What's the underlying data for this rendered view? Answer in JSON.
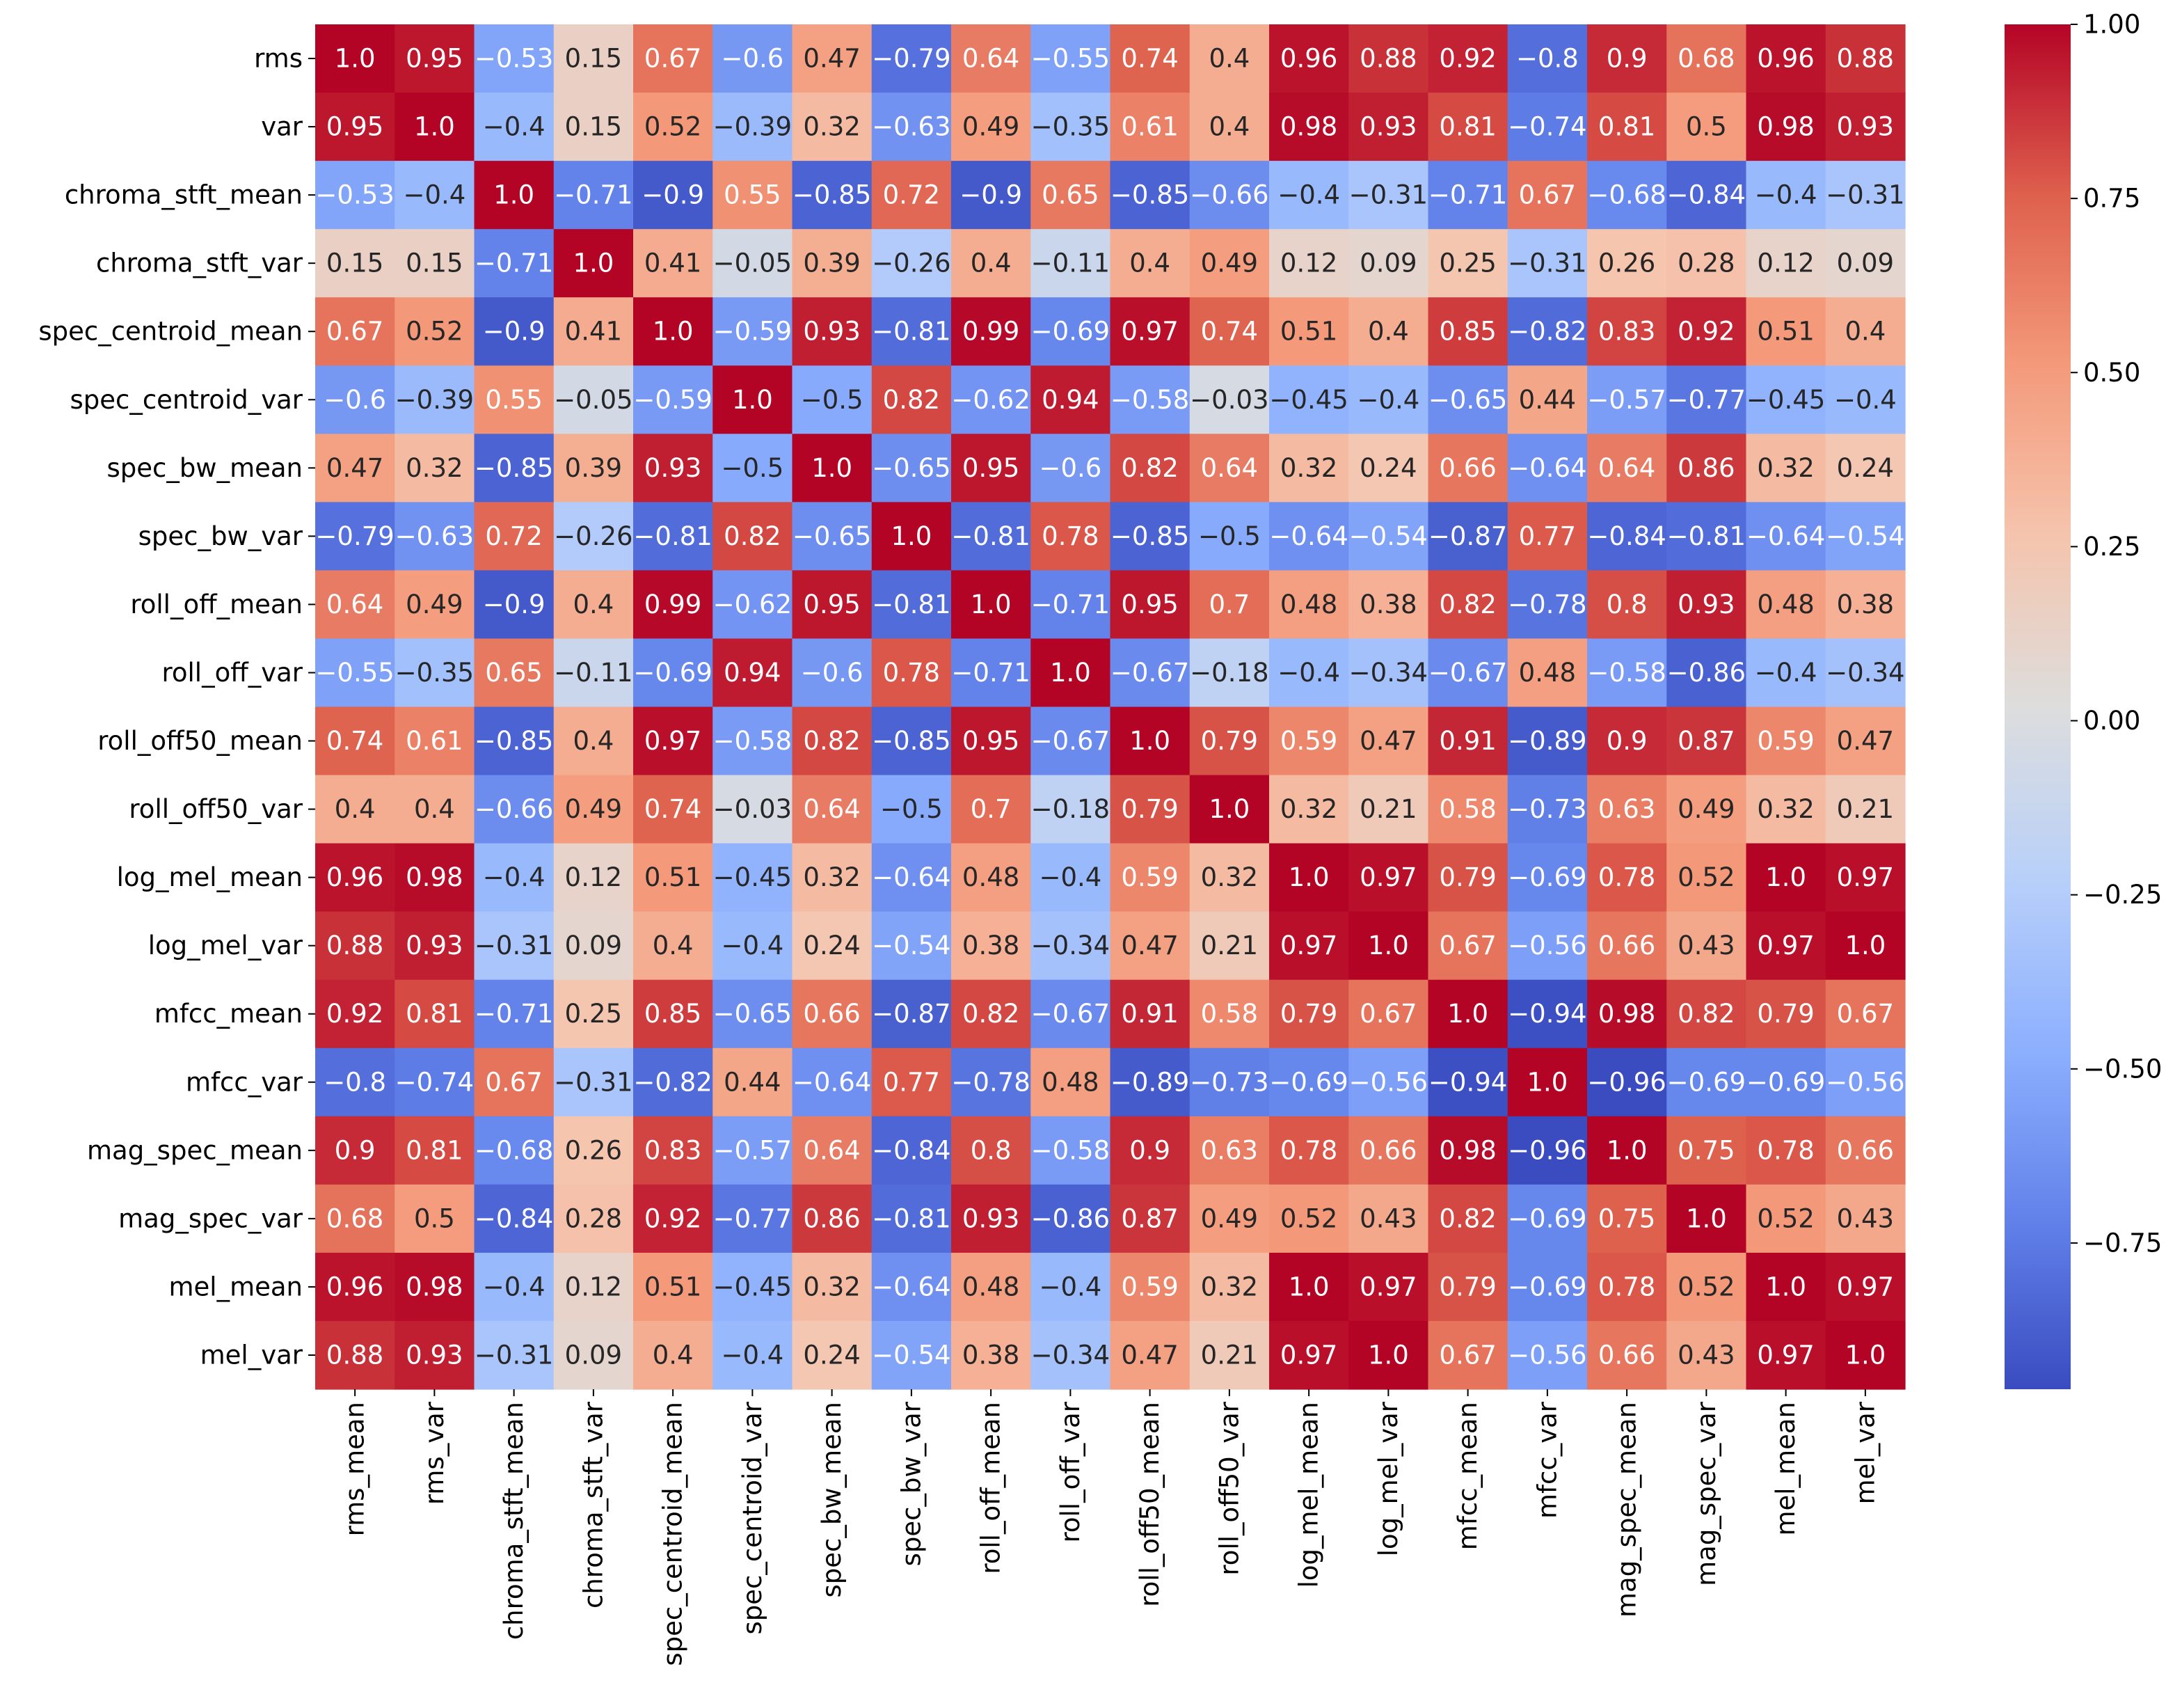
{
  "chart_data": {
    "type": "heatmap",
    "title": "",
    "xlabel": "",
    "ylabel": "",
    "colormap": "coolwarm",
    "vmin": -0.96,
    "vmax": 1.0,
    "colorbar_ticks": [
      1.0,
      0.75,
      0.5,
      0.25,
      0.0,
      -0.25,
      -0.5,
      -0.75
    ],
    "colorbar_tick_labels": [
      "1.00",
      "0.75",
      "0.50",
      "0.25",
      "0.00",
      "−0.25",
      "−0.50",
      "−0.75"
    ],
    "row_labels": [
      "rms",
      "var",
      "chroma_stft_mean",
      "chroma_stft_var",
      "spec_centroid_mean",
      "spec_centroid_var",
      "spec_bw_mean",
      "spec_bw_var",
      "roll_off_mean",
      "roll_off_var",
      "roll_off50_mean",
      "roll_off50_var",
      "log_mel_mean",
      "log_mel_var",
      "mfcc_mean",
      "mfcc_var",
      "mag_spec_mean",
      "mag_spec_var",
      "mel_mean",
      "mel_var"
    ],
    "col_labels": [
      "rms_mean",
      "rms_var",
      "chroma_stft_mean",
      "chroma_stft_var",
      "spec_centroid_mean",
      "spec_centroid_var",
      "spec_bw_mean",
      "spec_bw_var",
      "roll_off_mean",
      "roll_off_var",
      "roll_off50_mean",
      "roll_off50_var",
      "log_mel_mean",
      "log_mel_var",
      "mfcc_mean",
      "mfcc_var",
      "mag_spec_mean",
      "mag_spec_var",
      "mel_mean",
      "mel_var"
    ],
    "values": [
      [
        1.0,
        0.95,
        -0.53,
        0.15,
        0.67,
        -0.6,
        0.47,
        -0.79,
        0.64,
        -0.55,
        0.74,
        0.4,
        0.96,
        0.88,
        0.92,
        -0.8,
        0.9,
        0.68,
        0.96,
        0.88
      ],
      [
        0.95,
        1.0,
        -0.4,
        0.15,
        0.52,
        -0.39,
        0.32,
        -0.63,
        0.49,
        -0.35,
        0.61,
        0.4,
        0.98,
        0.93,
        0.81,
        -0.74,
        0.81,
        0.5,
        0.98,
        0.93
      ],
      [
        -0.53,
        -0.4,
        1.0,
        -0.71,
        -0.9,
        0.55,
        -0.85,
        0.72,
        -0.9,
        0.65,
        -0.85,
        -0.66,
        -0.4,
        -0.31,
        -0.71,
        0.67,
        -0.68,
        -0.84,
        -0.4,
        -0.31
      ],
      [
        0.15,
        0.15,
        -0.71,
        1.0,
        0.41,
        -0.05,
        0.39,
        -0.26,
        0.4,
        -0.11,
        0.4,
        0.49,
        0.12,
        0.09,
        0.25,
        -0.31,
        0.26,
        0.28,
        0.12,
        0.09
      ],
      [
        0.67,
        0.52,
        -0.9,
        0.41,
        1.0,
        -0.59,
        0.93,
        -0.81,
        0.99,
        -0.69,
        0.97,
        0.74,
        0.51,
        0.4,
        0.85,
        -0.82,
        0.83,
        0.92,
        0.51,
        0.4
      ],
      [
        -0.6,
        -0.39,
        0.55,
        -0.05,
        -0.59,
        1.0,
        -0.5,
        0.82,
        -0.62,
        0.94,
        -0.58,
        -0.03,
        -0.45,
        -0.4,
        -0.65,
        0.44,
        -0.57,
        -0.77,
        -0.45,
        -0.4
      ],
      [
        0.47,
        0.32,
        -0.85,
        0.39,
        0.93,
        -0.5,
        1.0,
        -0.65,
        0.95,
        -0.6,
        0.82,
        0.64,
        0.32,
        0.24,
        0.66,
        -0.64,
        0.64,
        0.86,
        0.32,
        0.24
      ],
      [
        -0.79,
        -0.63,
        0.72,
        -0.26,
        -0.81,
        0.82,
        -0.65,
        1.0,
        -0.81,
        0.78,
        -0.85,
        -0.5,
        -0.64,
        -0.54,
        -0.87,
        0.77,
        -0.84,
        -0.81,
        -0.64,
        -0.54
      ],
      [
        0.64,
        0.49,
        -0.9,
        0.4,
        0.99,
        -0.62,
        0.95,
        -0.81,
        1.0,
        -0.71,
        0.95,
        0.7,
        0.48,
        0.38,
        0.82,
        -0.78,
        0.8,
        0.93,
        0.48,
        0.38
      ],
      [
        -0.55,
        -0.35,
        0.65,
        -0.11,
        -0.69,
        0.94,
        -0.6,
        0.78,
        -0.71,
        1.0,
        -0.67,
        -0.18,
        -0.4,
        -0.34,
        -0.67,
        0.48,
        -0.58,
        -0.86,
        -0.4,
        -0.34
      ],
      [
        0.74,
        0.61,
        -0.85,
        0.4,
        0.97,
        -0.58,
        0.82,
        -0.85,
        0.95,
        -0.67,
        1.0,
        0.79,
        0.59,
        0.47,
        0.91,
        -0.89,
        0.9,
        0.87,
        0.59,
        0.47
      ],
      [
        0.4,
        0.4,
        -0.66,
        0.49,
        0.74,
        -0.03,
        0.64,
        -0.5,
        0.7,
        -0.18,
        0.79,
        1.0,
        0.32,
        0.21,
        0.58,
        -0.73,
        0.63,
        0.49,
        0.32,
        0.21
      ],
      [
        0.96,
        0.98,
        -0.4,
        0.12,
        0.51,
        -0.45,
        0.32,
        -0.64,
        0.48,
        -0.4,
        0.59,
        0.32,
        1.0,
        0.97,
        0.79,
        -0.69,
        0.78,
        0.52,
        1.0,
        0.97
      ],
      [
        0.88,
        0.93,
        -0.31,
        0.09,
        0.4,
        -0.4,
        0.24,
        -0.54,
        0.38,
        -0.34,
        0.47,
        0.21,
        0.97,
        1.0,
        0.67,
        -0.56,
        0.66,
        0.43,
        0.97,
        1.0
      ],
      [
        0.92,
        0.81,
        -0.71,
        0.25,
        0.85,
        -0.65,
        0.66,
        -0.87,
        0.82,
        -0.67,
        0.91,
        0.58,
        0.79,
        0.67,
        1.0,
        -0.94,
        0.98,
        0.82,
        0.79,
        0.67
      ],
      [
        -0.8,
        -0.74,
        0.67,
        -0.31,
        -0.82,
        0.44,
        -0.64,
        0.77,
        -0.78,
        0.48,
        -0.89,
        -0.73,
        -0.69,
        -0.56,
        -0.94,
        1.0,
        -0.96,
        -0.69,
        -0.69,
        -0.56
      ],
      [
        0.9,
        0.81,
        -0.68,
        0.26,
        0.83,
        -0.57,
        0.64,
        -0.84,
        0.8,
        -0.58,
        0.9,
        0.63,
        0.78,
        0.66,
        0.98,
        -0.96,
        1.0,
        0.75,
        0.78,
        0.66
      ],
      [
        0.68,
        0.5,
        -0.84,
        0.28,
        0.92,
        -0.77,
        0.86,
        -0.81,
        0.93,
        -0.86,
        0.87,
        0.49,
        0.52,
        0.43,
        0.82,
        -0.69,
        0.75,
        1.0,
        0.52,
        0.43
      ],
      [
        0.96,
        0.98,
        -0.4,
        0.12,
        0.51,
        -0.45,
        0.32,
        -0.64,
        0.48,
        -0.4,
        0.59,
        0.32,
        1.0,
        0.97,
        0.79,
        -0.69,
        0.78,
        0.52,
        1.0,
        0.97
      ],
      [
        0.88,
        0.93,
        -0.31,
        0.09,
        0.4,
        -0.4,
        0.24,
        -0.54,
        0.38,
        -0.34,
        0.47,
        0.21,
        0.97,
        1.0,
        0.67,
        -0.56,
        0.66,
        0.43,
        0.97,
        1.0
      ]
    ]
  }
}
